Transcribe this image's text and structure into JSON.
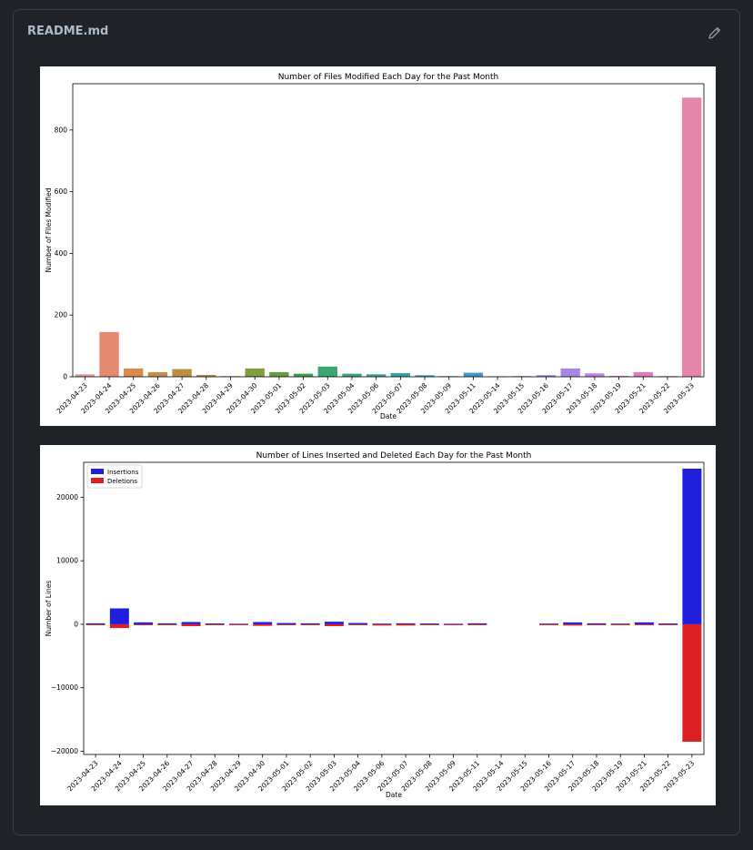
{
  "file": {
    "name": "README.md",
    "edit_icon": "pencil-icon"
  },
  "chart_data": [
    {
      "type": "bar",
      "title": "Number of Files Modified Each Day for the Past Month",
      "xlabel": "Date",
      "ylabel": "Number of Files Modified",
      "ylim": [
        0,
        950
      ],
      "yticks": [
        0,
        200,
        400,
        600,
        800
      ],
      "categories": [
        "2023-04-23",
        "2023-04-24",
        "2023-04-25",
        "2023-04-26",
        "2023-04-27",
        "2023-04-28",
        "2023-04-29",
        "2023-04-30",
        "2023-05-01",
        "2023-05-02",
        "2023-05-03",
        "2023-05-04",
        "2023-05-06",
        "2023-05-07",
        "2023-05-08",
        "2023-05-09",
        "2023-05-11",
        "2023-05-14",
        "2023-05-15",
        "2023-05-16",
        "2023-05-17",
        "2023-05-18",
        "2023-05-19",
        "2023-05-21",
        "2023-05-22",
        "2023-05-23"
      ],
      "values": [
        8,
        145,
        27,
        15,
        25,
        6,
        2,
        27,
        15,
        10,
        33,
        10,
        8,
        12,
        5,
        2,
        13,
        1,
        2,
        5,
        27,
        11,
        3,
        15,
        2,
        905
      ],
      "colors": [
        "#e7968e",
        "#e58a72",
        "#d8894b",
        "#c98d45",
        "#bb8f3f",
        "#ab9440",
        "#989a3c",
        "#7f9e3d",
        "#5ea03e",
        "#3ba345",
        "#3ba66e",
        "#3ca484",
        "#3ca391",
        "#3ca29d",
        "#3ca0a8",
        "#3d9eb3",
        "#3b9ac2",
        "#4a93d4",
        "#6d8be0",
        "#8c83e6",
        "#a986e6",
        "#c27fe2",
        "#d77bd5",
        "#e07abe",
        "#e47ab0",
        "#e486a9"
      ]
    },
    {
      "type": "bar",
      "title": "Number of Lines Inserted and Deleted Each Day for the Past Month",
      "xlabel": "Date",
      "ylabel": "Number of Lines",
      "ylim": [
        -20500,
        25500
      ],
      "yticks": [
        -20000,
        -10000,
        0,
        10000,
        20000
      ],
      "legend_position": "top-left",
      "categories": [
        "2023-04-23",
        "2023-04-24",
        "2023-04-25",
        "2023-04-26",
        "2023-04-27",
        "2023-04-28",
        "2023-04-29",
        "2023-04-30",
        "2023-05-01",
        "2023-05-02",
        "2023-05-03",
        "2023-05-04",
        "2023-05-06",
        "2023-05-07",
        "2023-05-08",
        "2023-05-09",
        "2023-05-11",
        "2023-05-14",
        "2023-05-15",
        "2023-05-16",
        "2023-05-17",
        "2023-05-18",
        "2023-05-19",
        "2023-05-21",
        "2023-05-22",
        "2023-05-23"
      ],
      "series": [
        {
          "name": "Insertions",
          "color": "#1f1fdc",
          "values": [
            150,
            2500,
            300,
            150,
            350,
            120,
            80,
            350,
            200,
            150,
            400,
            200,
            100,
            150,
            120,
            80,
            150,
            0,
            0,
            100,
            300,
            150,
            100,
            300,
            120,
            24500
          ]
        },
        {
          "name": "Deletions",
          "color": "#dc1f24",
          "values": [
            -100,
            -600,
            -150,
            -50,
            -300,
            -50,
            -30,
            -250,
            -150,
            -50,
            -300,
            -80,
            -200,
            -200,
            -60,
            -40,
            -60,
            0,
            0,
            -60,
            -200,
            -80,
            -50,
            -80,
            -50,
            -18500
          ]
        }
      ]
    }
  ]
}
